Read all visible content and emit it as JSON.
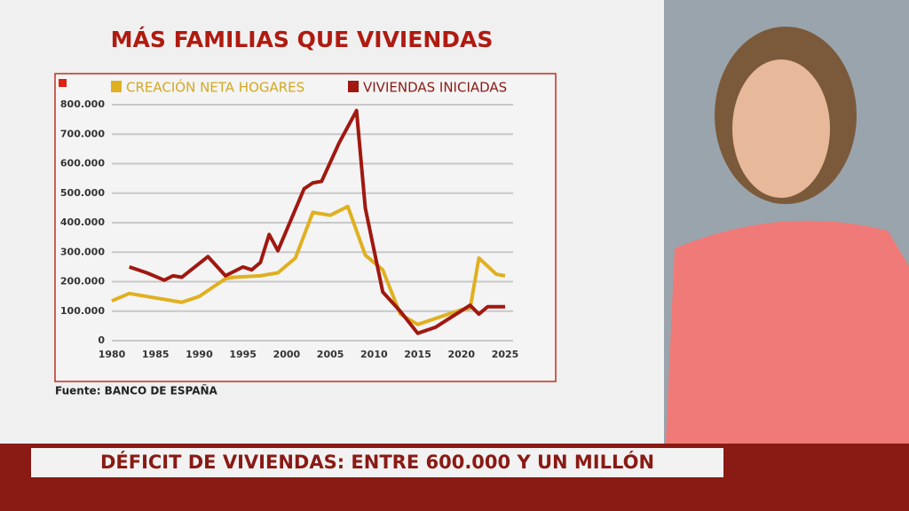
{
  "chart_data": {
    "type": "line",
    "title": "MÁS FAMILIAS QUE VIVIENDAS",
    "series": [
      {
        "name": "CREACIÓN NETA HOGARES",
        "color": "#e0b020",
        "x": [
          1980,
          1982,
          1985,
          1988,
          1990,
          1993,
          1994,
          1997,
          1999,
          2001,
          2003,
          2005,
          2007,
          2009,
          2011,
          2013,
          2015,
          2018,
          2020,
          2021,
          2022,
          2024,
          2025
        ],
        "values": [
          135000,
          160000,
          145000,
          130000,
          150000,
          210000,
          215000,
          220000,
          230000,
          280000,
          435000,
          425000,
          455000,
          290000,
          240000,
          90000,
          55000,
          85000,
          105000,
          110000,
          280000,
          225000,
          220000
        ]
      },
      {
        "name": "VIVIENDAS INICIADAS",
        "color": "#a01810",
        "x": [
          1982,
          1984,
          1986,
          1987,
          1988,
          1991,
          1993,
          1995,
          1996,
          1997,
          1998,
          1999,
          2002,
          2003,
          2004,
          2006,
          2008,
          2009,
          2011,
          2013,
          2015,
          2017,
          2021,
          2022,
          2023,
          2025
        ],
        "values": [
          250000,
          230000,
          205000,
          220000,
          215000,
          285000,
          220000,
          250000,
          240000,
          265000,
          360000,
          305000,
          515000,
          535000,
          540000,
          670000,
          780000,
          450000,
          165000,
          100000,
          25000,
          45000,
          120000,
          90000,
          115000,
          115000
        ]
      }
    ],
    "xlim": [
      1980,
      2025
    ],
    "xticks": [
      1980,
      1985,
      1990,
      1995,
      2000,
      2005,
      2010,
      2015,
      2020,
      2025
    ],
    "ylim": [
      0,
      800000
    ],
    "yticks": [
      0,
      {
        "value": 100000,
        "label": "100.000"
      },
      {
        "value": 200000,
        "label": "200.000"
      },
      {
        "value": 300000,
        "label": "300.000"
      },
      {
        "value": 400000,
        "label": "400.000"
      },
      {
        "value": 500000,
        "label": "500.000"
      },
      {
        "value": 600000,
        "label": "600.000"
      },
      {
        "value": 700000,
        "label": "700.000"
      },
      {
        "value": 800000,
        "label": "800.000"
      }
    ],
    "grid": true,
    "source": "Fuente: BANCO DE ESPAÑA"
  },
  "banner": "DÉFICIT DE VIVIENDAS: ENTRE 600.000 Y UN MILLÓN"
}
